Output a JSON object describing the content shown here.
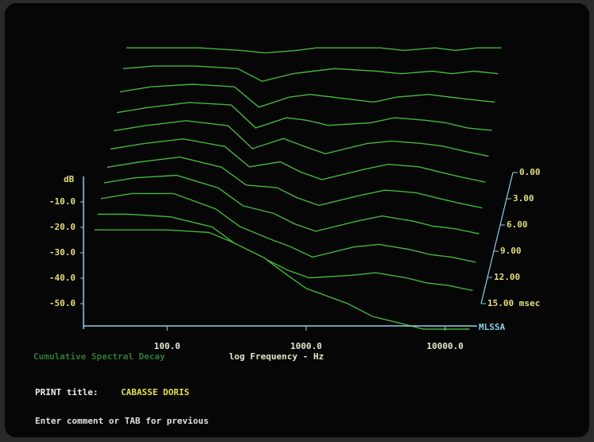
{
  "chart_data": {
    "type": "waterfall",
    "xlabel": "log Frequency - Hz",
    "subtitle": "Cumulative Spectral Decay",
    "ylabel": "dB",
    "zlabel": "MLSSA",
    "log_x": true,
    "xlim": [
      25,
      17000
    ],
    "xticks": [
      {
        "value": 100,
        "label": "100.0"
      },
      {
        "value": 1000,
        "label": "1000.0"
      },
      {
        "value": 10000,
        "label": "10000.0"
      }
    ],
    "ylim": [
      -60,
      0
    ],
    "yticks": [
      {
        "value": -10,
        "label": "-10.0"
      },
      {
        "value": -20,
        "label": "-20.0"
      },
      {
        "value": -30,
        "label": "-30.0"
      },
      {
        "value": -40,
        "label": "-40.0"
      },
      {
        "value": -50,
        "label": "-50.0"
      }
    ],
    "tlim": [
      0,
      15
    ],
    "tticks": [
      {
        "value": 0,
        "label": "0.00"
      },
      {
        "value": 3,
        "label": "3.00"
      },
      {
        "value": 6,
        "label": "6.00"
      },
      {
        "value": 9,
        "label": "9.00"
      },
      {
        "value": 12,
        "label": "12.00"
      },
      {
        "value": 15,
        "label": "15.00 msec"
      }
    ],
    "color": "#45b53c",
    "x": [
      30,
      50,
      100,
      200,
      300,
      500,
      700,
      1000,
      2000,
      3000,
      5000,
      7000,
      10000,
      15000
    ],
    "slices": [
      {
        "t": 0,
        "values": [
          -1,
          -1,
          -1,
          -2,
          -3,
          -2,
          -1,
          -1,
          -1,
          -2,
          -1,
          -2,
          -1,
          -1
        ]
      },
      {
        "t": 1.5,
        "values": [
          -4,
          -3,
          -3,
          -4,
          -9,
          -6,
          -5,
          -4,
          -5,
          -6,
          -5,
          -6,
          -5,
          -6
        ]
      },
      {
        "t": 3,
        "values": [
          -8,
          -6,
          -5,
          -6,
          -14,
          -10,
          -9,
          -10,
          -12,
          -10,
          -9,
          -10,
          -11,
          -12
        ]
      },
      {
        "t": 4.5,
        "values": [
          -11,
          -9,
          -7,
          -8,
          -17,
          -13,
          -14,
          -16,
          -15,
          -13,
          -14,
          -15,
          -17,
          -18
        ]
      },
      {
        "t": 6,
        "values": [
          -13,
          -11,
          -9,
          -11,
          -20,
          -16,
          -19,
          -22,
          -18,
          -17,
          -18,
          -19,
          -21,
          -23
        ]
      },
      {
        "t": 7.5,
        "values": [
          -15,
          -13,
          -11,
          -14,
          -22,
          -20,
          -24,
          -27,
          -23,
          -21,
          -22,
          -24,
          -26,
          -28
        ]
      },
      {
        "t": 9,
        "values": [
          -17,
          -15,
          -13,
          -17,
          -24,
          -25,
          -29,
          -32,
          -28,
          -26,
          -27,
          -29,
          -31,
          -33
        ]
      },
      {
        "t": 10.5,
        "values": [
          -18,
          -16,
          -15,
          -20,
          -27,
          -30,
          -34,
          -37,
          -33,
          -31,
          -33,
          -35,
          -36,
          -38
        ]
      },
      {
        "t": 12,
        "values": [
          -19,
          -17,
          -17,
          -23,
          -30,
          -35,
          -38,
          -42,
          -38,
          -37,
          -39,
          -41,
          -42,
          -44
        ]
      },
      {
        "t": 13.5,
        "values": [
          -20,
          -20,
          -21,
          -25,
          -32,
          -38,
          -42,
          -45,
          -44,
          -43,
          -45,
          -47,
          -48,
          -50
        ]
      },
      {
        "t": 15,
        "values": [
          -21,
          -21,
          -21,
          -22,
          -26,
          -32,
          -38,
          -44,
          -50,
          -55,
          -58,
          -60,
          -60,
          -60
        ]
      }
    ]
  },
  "screen": {
    "print_label": "PRINT title:",
    "print_value": "CABASSE DORIS",
    "prompt": "Enter comment or TAB for previous"
  }
}
